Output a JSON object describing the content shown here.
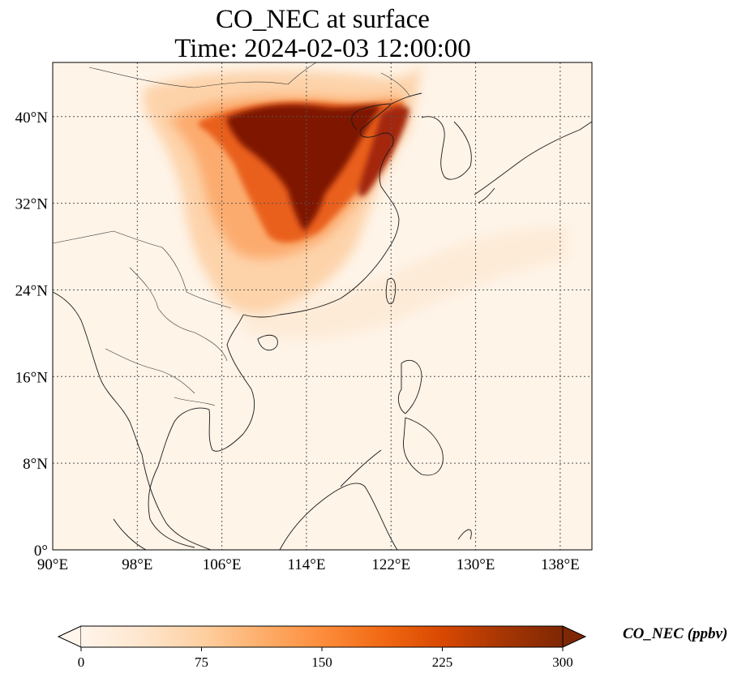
{
  "title": {
    "line1": "CO_NEC at surface",
    "line2": "Time: 2024-02-03 12:00:00"
  },
  "map": {
    "projection": "PlateCarree",
    "lon_range": [
      90,
      141
    ],
    "lat_range": [
      0,
      45
    ],
    "gridlines": "dotted",
    "lon_ticks": [
      {
        "value": 90,
        "label": "90°E"
      },
      {
        "value": 98,
        "label": "98°E"
      },
      {
        "value": 106,
        "label": "106°E"
      },
      {
        "value": 114,
        "label": "114°E"
      },
      {
        "value": 122,
        "label": "122°E"
      },
      {
        "value": 130,
        "label": "130°E"
      },
      {
        "value": 138,
        "label": "138°E"
      }
    ],
    "lat_ticks": [
      {
        "value": 0,
        "label": "0°"
      },
      {
        "value": 8,
        "label": "8°N"
      },
      {
        "value": 16,
        "label": "16°N"
      },
      {
        "value": 24,
        "label": "24°N"
      },
      {
        "value": 32,
        "label": "32°N"
      },
      {
        "value": 40,
        "label": "40°N"
      }
    ],
    "field": "CO_NEC",
    "field_description_regions": [
      {
        "region": "North China Plain core",
        "level": 300
      },
      {
        "region": "outer plume over interior China",
        "level": 110
      },
      {
        "region": "background ocean/SE Asia",
        "level": 10
      }
    ]
  },
  "colorbar": {
    "label": "CO_NEC (ppbv)",
    "min": 0,
    "max": 300,
    "extend": "both",
    "colormap": [
      "#fff5eb",
      "#fee6ce",
      "#fdd0a2",
      "#fdae6b",
      "#fd8d3c",
      "#f16913",
      "#d94801",
      "#a63603",
      "#7f2704"
    ],
    "ticks": [
      {
        "value": 0,
        "label": "0"
      },
      {
        "value": 75,
        "label": "75"
      },
      {
        "value": 150,
        "label": "150"
      },
      {
        "value": 225,
        "label": "225"
      },
      {
        "value": 300,
        "label": "300"
      }
    ]
  }
}
